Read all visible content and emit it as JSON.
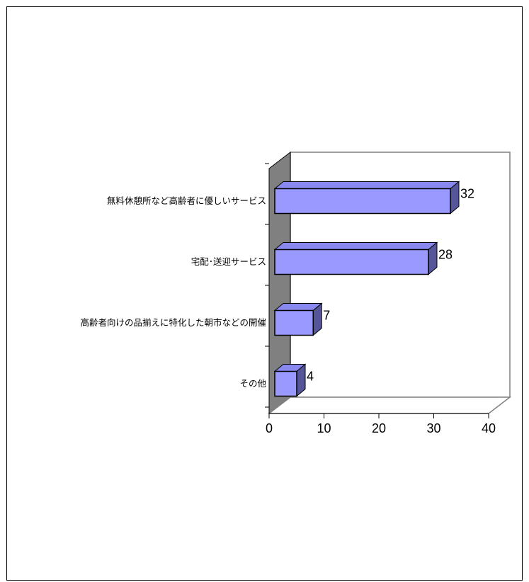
{
  "chart_data": {
    "type": "bar",
    "orientation": "horizontal",
    "three_d": true,
    "categories": [
      "無料休憩所など高齢者に優しいサービス",
      "宅配･送迎サービス",
      "高齢者向けの品揃えに特化した朝市などの開催",
      "その他"
    ],
    "values": [
      32,
      28,
      7,
      4
    ],
    "value_labels": [
      "32",
      "28",
      "7",
      "4"
    ],
    "xlim": [
      0,
      40
    ],
    "x_ticks": [
      "0",
      "10",
      "20",
      "30",
      "40"
    ],
    "title": "",
    "xlabel": "",
    "ylabel": "",
    "grid": false,
    "legend": "none",
    "colors": {
      "bar_front": "#9999ff",
      "bar_top": "#8888ee",
      "bar_side": "#555599",
      "side_wall": "#808080",
      "floor": "#ffffff",
      "wall_edge": "#808080"
    }
  }
}
